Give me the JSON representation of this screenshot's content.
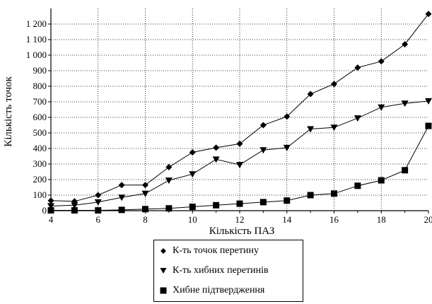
{
  "chart_data": {
    "type": "line",
    "xlabel": "Кількість ПАЗ",
    "ylabel": "Кількість точок",
    "xlim": [
      4,
      20
    ],
    "ylim": [
      0,
      1300
    ],
    "x_ticks": [
      "4",
      "6",
      "8",
      "10",
      "12",
      "14",
      "16",
      "18",
      "20"
    ],
    "y_ticks": [
      "0",
      "100",
      "200",
      "300",
      "400",
      "500",
      "600",
      "700",
      "800",
      "900",
      "1 000",
      "1 100",
      "1 200"
    ],
    "grid": true,
    "legend_position": "bottom",
    "x": [
      4,
      5,
      6,
      7,
      8,
      9,
      10,
      11,
      12,
      13,
      14,
      15,
      16,
      17,
      18,
      19,
      20
    ],
    "series": [
      {
        "name": "К-ть точок перетину",
        "marker": "diamond",
        "color": "#000000",
        "values": [
          65,
          60,
          100,
          165,
          165,
          280,
          375,
          405,
          430,
          550,
          605,
          750,
          815,
          920,
          960,
          1070,
          1265
        ]
      },
      {
        "name": "К-ть хибних перетинів",
        "marker": "triangle-down",
        "color": "#000000",
        "x": [
          4,
          5,
          6,
          7,
          8,
          9,
          10,
          11,
          12,
          13,
          14,
          15,
          16,
          17,
          18,
          19,
          20
        ],
        "values": [
          30,
          35,
          55,
          85,
          110,
          195,
          235,
          330,
          295,
          390,
          405,
          525,
          535,
          595,
          665,
          690,
          705
        ]
      },
      {
        "name": "Хибне підтвердження",
        "marker": "square",
        "color": "#000000",
        "x": [
          4,
          5,
          6,
          7,
          8,
          9,
          10,
          11,
          12,
          13,
          14,
          15,
          16,
          17,
          18,
          19,
          20
        ],
        "values": [
          2,
          2,
          2,
          5,
          10,
          15,
          25,
          35,
          45,
          55,
          65,
          100,
          110,
          160,
          195,
          260,
          545
        ]
      }
    ]
  }
}
